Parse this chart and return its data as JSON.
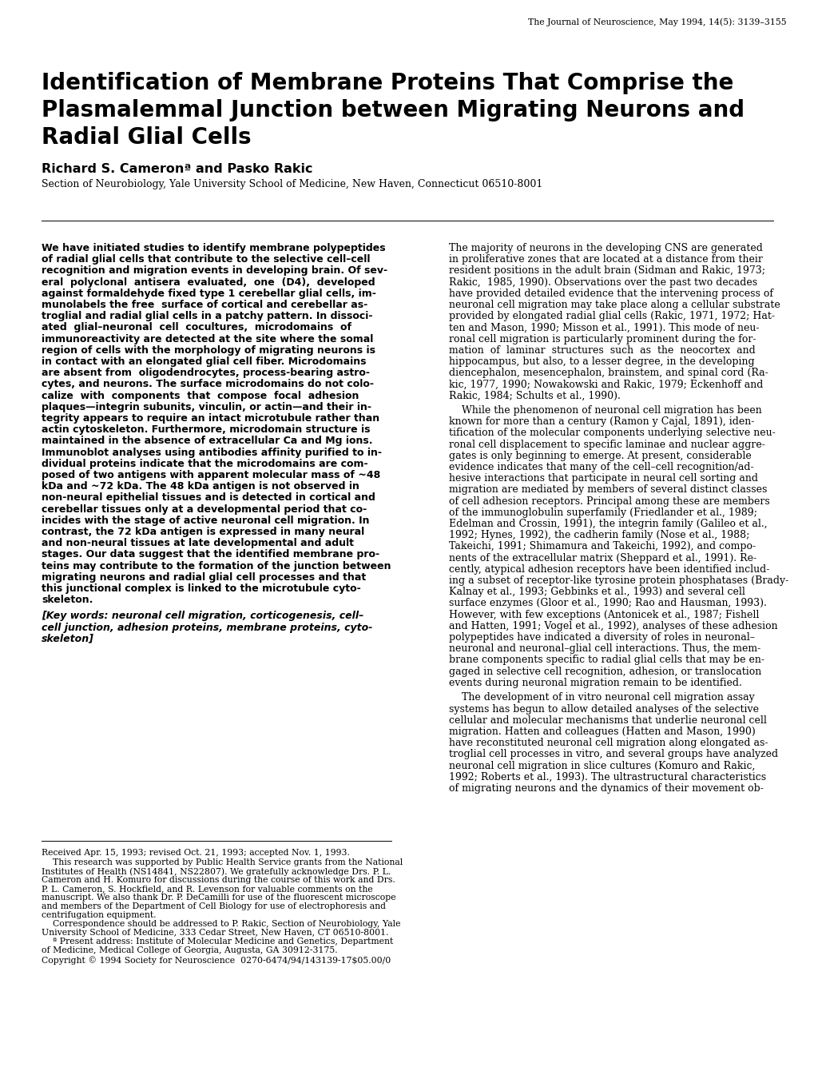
{
  "background_color": "#ffffff",
  "journal_header": "The Journal of Neuroscience, May 1994, 14(5): 3139–3155",
  "title_line1": "Identification of Membrane Proteins That Comprise the",
  "title_line2": "Plasmalemmal Junction between Migrating Neurons and",
  "title_line3": "Radial Glial Cells",
  "authors": "Richard S. Cameronª and Pasko Rakic",
  "affiliation": "Section of Neurobiology, Yale University School of Medicine, New Haven, Connecticut 06510-8001",
  "abstract_lines": [
    "We have initiated studies to identify membrane polypeptides",
    "of radial glial cells that contribute to the selective cell–cell",
    "recognition and migration events in developing brain. Of sev-",
    "eral  polyclonal  antisera  evaluated,  one  (D4),  developed",
    "against formaldehyde fixed type 1 cerebellar glial cells, im-",
    "munolabels the free  surface of cortical and cerebellar as-",
    "troglial and radial glial cells in a patchy pattern. In dissoci-",
    "ated  glial–neuronal  cell  cocultures,  microdomains  of",
    "immunoreactivity are detected at the site where the somal",
    "region of cells with the morphology of migrating neurons is",
    "in contact with an elongated glial cell fiber. Microdomains",
    "are absent from  oligodendrocytes, process-bearing astro-",
    "cytes, and neurons. The surface microdomains do not colo-",
    "calize  with  components  that  compose  focal  adhesion",
    "plaques—integrin subunits, vinculin, or actin—and their in-",
    "tegrity appears to require an intact microtubule rather than",
    "actin cytoskeleton. Furthermore, microdomain structure is",
    "maintained in the absence of extracellular Ca and Mg ions.",
    "Immunoblot analyses using antibodies affinity purified to in-",
    "dividual proteins indicate that the microdomains are com-",
    "posed of two antigens with apparent molecular mass of ~48",
    "kDa and ~72 kDa. The 48 kDa antigen is not observed in",
    "non-neural epithelial tissues and is detected in cortical and",
    "cerebellar tissues only at a developmental period that co-",
    "incides with the stage of active neuronal cell migration. In",
    "contrast, the 72 kDa antigen is expressed in many neural",
    "and non-neural tissues at late developmental and adult",
    "stages. Our data suggest that the identified membrane pro-",
    "teins may contribute to the formation of the junction between",
    "migrating neurons and radial glial cell processes and that",
    "this junctional complex is linked to the microtubule cyto-",
    "skeleton."
  ],
  "keyword_lines": [
    "[Key words: neuronal cell migration, corticogenesis, cell–",
    "cell junction, adhesion proteins, membrane proteins, cyto-",
    "skeleton]"
  ],
  "right_col_para1": [
    "The majority of neurons in the developing CNS are generated",
    "in proliferative zones that are located at a distance from their",
    "resident positions in the adult brain (Sidman and Rakic, 1973;",
    "Rakic,  1985, 1990). Observations over the past two decades",
    "have provided detailed evidence that the intervening process of",
    "neuronal cell migration may take place along a cellular substrate",
    "provided by elongated radial glial cells (Rakic, 1971, 1972; Hat-",
    "ten and Mason, 1990; Misson et al., 1991). This mode of neu-",
    "ronal cell migration is particularly prominent during the for-",
    "mation  of  laminar  structures  such  as  the  neocortex  and",
    "hippocampus, but also, to a lesser degree, in the developing",
    "diencephalon, mesencephalon, brainstem, and spinal cord (Ra-",
    "kic, 1977, 1990; Nowakowski and Rakic, 1979; Eckenhoff and",
    "Rakic, 1984; Schults et al., 1990)."
  ],
  "right_col_para2": [
    "    While the phenomenon of neuronal cell migration has been",
    "known for more than a century (Ramon y Cajal, 1891), iden-",
    "tification of the molecular components underlying selective neu-",
    "ronal cell displacement to specific laminae and nuclear aggre-",
    "gates is only beginning to emerge. At present, considerable",
    "evidence indicates that many of the cell–cell recognition/ad-",
    "hesive interactions that participate in neural cell sorting and",
    "migration are mediated by members of several distinct classes",
    "of cell adhesion receptors. Principal among these are members",
    "of the immunoglobulin superfamily (Friedlander et al., 1989;",
    "Edelman and Crossin, 1991), the integrin family (Galileo et al.,",
    "1992; Hynes, 1992), the cadherin family (Nose et al., 1988;",
    "Takeichi, 1991; Shimamura and Takeichi, 1992), and compo-",
    "nents of the extracellular matrix (Sheppard et al., 1991). Re-",
    "cently, atypical adhesion receptors have been identified includ-",
    "ing a subset of receptor-like tyrosine protein phosphatases (Brady-",
    "Kalnay et al., 1993; Gebbinks et al., 1993) and several cell",
    "surface enzymes (Gloor et al., 1990; Rao and Hausman, 1993).",
    "However, with few exceptions (Antonicek et al., 1987; Fishell",
    "and Hatten, 1991; Vogel et al., 1992), analyses of these adhesion",
    "polypeptides have indicated a diversity of roles in neuronal–",
    "neuronal and neuronal–glial cell interactions. Thus, the mem-",
    "brane components specific to radial glial cells that may be en-",
    "gaged in selective cell recognition, adhesion, or translocation",
    "events during neuronal migration remain to be identified."
  ],
  "right_col_para3": [
    "    The development of in vitro neuronal cell migration assay",
    "systems has begun to allow detailed analyses of the selective",
    "cellular and molecular mechanisms that underlie neuronal cell",
    "migration. Hatten and colleagues (Hatten and Mason, 1990)",
    "have reconstituted neuronal cell migration along elongated as-",
    "troglial cell processes in vitro, and several groups have analyzed",
    "neuronal cell migration in slice cultures (Komuro and Rakic,",
    "1992; Roberts et al., 1993). The ultrastructural characteristics",
    "of migrating neurons and the dynamics of their movement ob-"
  ],
  "footnote_received": "Received Apr. 15, 1993; revised Oct. 21, 1993; accepted Nov. 1, 1993.",
  "footnote_1_lines": [
    "    This research was supported by Public Health Service grants from the National",
    "Institutes of Health (NS14841, NS22807). We gratefully acknowledge Drs. P. L.",
    "Cameron and H. Komuro for discussions during the course of this work and Drs.",
    "P. L. Cameron, S. Hockfield, and R. Levenson for valuable comments on the",
    "manuscript. We also thank Dr. P. DeCamilli for use of the fluorescent microscope",
    "and members of the Department of Cell Biology for use of electrophoresis and",
    "centrifugation equipment."
  ],
  "footnote_2_lines": [
    "    Correspondence should be addressed to P. Rakic, Section of Neurobiology, Yale",
    "University School of Medicine, 333 Cedar Street, New Haven, CT 06510-8001."
  ],
  "footnote_a_lines": [
    "    ª Present address: Institute of Molecular Medicine and Genetics, Department",
    "of Medicine, Medical College of Georgia, Augusta, GA 30912-3175."
  ],
  "footnote_copyright": "Copyright © 1994 Society for Neuroscience  0270-6474/94/143139-17$05.00/0"
}
